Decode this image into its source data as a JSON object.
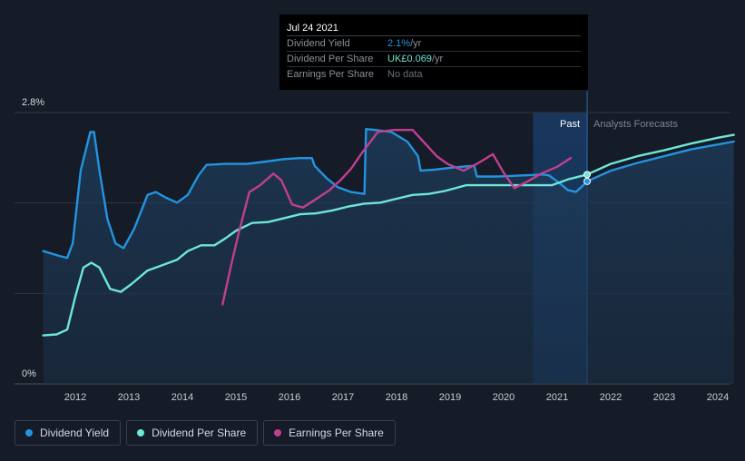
{
  "tooltip": {
    "date": "Jul 24 2021",
    "rows": [
      {
        "label": "Dividend Yield",
        "value": "2.1%",
        "unit": " /yr",
        "color": "#2394df"
      },
      {
        "label": "Dividend Per Share",
        "value": "UK£0.069",
        "unit": " /yr",
        "color": "#6ee6d8"
      },
      {
        "label": "Earnings Per Share",
        "value": "No data",
        "unit": "",
        "color": "#6b717d"
      }
    ]
  },
  "legend": [
    {
      "label": "Dividend Yield",
      "color": "#2394df"
    },
    {
      "label": "Dividend Per Share",
      "color": "#6ee6d8"
    },
    {
      "label": "Earnings Per Share",
      "color": "#c13f8f"
    }
  ],
  "chart_data": {
    "type": "line",
    "ylim": [
      0,
      2.8
    ],
    "y_tick_labels": [
      "2.8%",
      "0%"
    ],
    "x_range": [
      2011.4,
      2024.3
    ],
    "x_ticks": [
      2012,
      2013,
      2014,
      2015,
      2016,
      2017,
      2018,
      2019,
      2020,
      2021,
      2022,
      2023,
      2024
    ],
    "past_label": "Past",
    "forecast_label": "Analysts Forecasts",
    "forecast_start": 2021.56,
    "past_band_start": 2020.55,
    "series": [
      {
        "name": "Dividend Yield",
        "color": "#2394df",
        "fill": true,
        "points": [
          [
            2011.4,
            1.37
          ],
          [
            2011.7,
            1.32
          ],
          [
            2011.85,
            1.3
          ],
          [
            2011.95,
            1.45
          ],
          [
            2012.1,
            2.2
          ],
          [
            2012.28,
            2.6
          ],
          [
            2012.35,
            2.6
          ],
          [
            2012.45,
            2.2
          ],
          [
            2012.6,
            1.7
          ],
          [
            2012.75,
            1.45
          ],
          [
            2012.9,
            1.4
          ],
          [
            2013.1,
            1.6
          ],
          [
            2013.35,
            1.95
          ],
          [
            2013.5,
            1.98
          ],
          [
            2013.7,
            1.92
          ],
          [
            2013.9,
            1.87
          ],
          [
            2014.1,
            1.95
          ],
          [
            2014.3,
            2.15
          ],
          [
            2014.45,
            2.26
          ],
          [
            2014.8,
            2.27
          ],
          [
            2015.2,
            2.27
          ],
          [
            2015.5,
            2.29
          ],
          [
            2015.9,
            2.32
          ],
          [
            2016.2,
            2.33
          ],
          [
            2016.42,
            2.33
          ],
          [
            2016.47,
            2.25
          ],
          [
            2016.7,
            2.12
          ],
          [
            2016.9,
            2.03
          ],
          [
            2017.15,
            1.98
          ],
          [
            2017.4,
            1.96
          ],
          [
            2017.43,
            2.63
          ],
          [
            2017.6,
            2.62
          ],
          [
            2017.9,
            2.6
          ],
          [
            2018.2,
            2.5
          ],
          [
            2018.4,
            2.35
          ],
          [
            2018.45,
            2.2
          ],
          [
            2018.7,
            2.21
          ],
          [
            2019.0,
            2.23
          ],
          [
            2019.2,
            2.24
          ],
          [
            2019.45,
            2.25
          ],
          [
            2019.5,
            2.14
          ],
          [
            2019.9,
            2.14
          ],
          [
            2020.3,
            2.15
          ],
          [
            2020.75,
            2.16
          ],
          [
            2020.85,
            2.15
          ],
          [
            2021.0,
            2.09
          ],
          [
            2021.2,
            2.0
          ],
          [
            2021.35,
            1.98
          ],
          [
            2021.45,
            2.03
          ],
          [
            2021.56,
            2.09
          ],
          [
            2022.0,
            2.2
          ],
          [
            2022.5,
            2.28
          ],
          [
            2023.0,
            2.35
          ],
          [
            2023.5,
            2.42
          ],
          [
            2024.0,
            2.47
          ],
          [
            2024.3,
            2.5
          ]
        ]
      },
      {
        "name": "Dividend Per Share",
        "color": "#6ee6d8",
        "fill": false,
        "points": [
          [
            2011.4,
            0.5
          ],
          [
            2011.65,
            0.51
          ],
          [
            2011.85,
            0.56
          ],
          [
            2012.0,
            0.9
          ],
          [
            2012.15,
            1.2
          ],
          [
            2012.3,
            1.25
          ],
          [
            2012.45,
            1.2
          ],
          [
            2012.65,
            0.98
          ],
          [
            2012.85,
            0.95
          ],
          [
            2013.05,
            1.03
          ],
          [
            2013.35,
            1.17
          ],
          [
            2013.6,
            1.22
          ],
          [
            2013.9,
            1.28
          ],
          [
            2014.1,
            1.37
          ],
          [
            2014.35,
            1.43
          ],
          [
            2014.6,
            1.43
          ],
          [
            2014.8,
            1.5
          ],
          [
            2015.0,
            1.58
          ],
          [
            2015.3,
            1.66
          ],
          [
            2015.6,
            1.67
          ],
          [
            2015.9,
            1.71
          ],
          [
            2016.2,
            1.75
          ],
          [
            2016.5,
            1.76
          ],
          [
            2016.8,
            1.79
          ],
          [
            2017.1,
            1.83
          ],
          [
            2017.4,
            1.86
          ],
          [
            2017.7,
            1.87
          ],
          [
            2018.0,
            1.91
          ],
          [
            2018.3,
            1.95
          ],
          [
            2018.6,
            1.96
          ],
          [
            2018.9,
            1.99
          ],
          [
            2019.3,
            2.05
          ],
          [
            2019.6,
            2.05
          ],
          [
            2020.0,
            2.05
          ],
          [
            2020.4,
            2.05
          ],
          [
            2020.9,
            2.05
          ],
          [
            2021.2,
            2.11
          ],
          [
            2021.56,
            2.16
          ],
          [
            2022.0,
            2.27
          ],
          [
            2022.5,
            2.35
          ],
          [
            2023.0,
            2.41
          ],
          [
            2023.5,
            2.48
          ],
          [
            2024.0,
            2.54
          ],
          [
            2024.3,
            2.57
          ]
        ]
      },
      {
        "name": "Earnings Per Share",
        "color": "#c13f8f",
        "fill": false,
        "points": [
          [
            2014.75,
            0.82
          ],
          [
            2014.9,
            1.2
          ],
          [
            2015.05,
            1.55
          ],
          [
            2015.25,
            1.98
          ],
          [
            2015.45,
            2.05
          ],
          [
            2015.7,
            2.17
          ],
          [
            2015.85,
            2.1
          ],
          [
            2016.05,
            1.85
          ],
          [
            2016.25,
            1.82
          ],
          [
            2016.45,
            1.89
          ],
          [
            2016.75,
            2.0
          ],
          [
            2016.95,
            2.1
          ],
          [
            2017.15,
            2.22
          ],
          [
            2017.35,
            2.38
          ],
          [
            2017.65,
            2.6
          ],
          [
            2017.95,
            2.62
          ],
          [
            2018.3,
            2.62
          ],
          [
            2018.5,
            2.5
          ],
          [
            2018.75,
            2.35
          ],
          [
            2018.95,
            2.27
          ],
          [
            2019.25,
            2.2
          ],
          [
            2019.5,
            2.27
          ],
          [
            2019.8,
            2.37
          ],
          [
            2020.0,
            2.18
          ],
          [
            2020.2,
            2.02
          ],
          [
            2020.45,
            2.09
          ],
          [
            2020.7,
            2.17
          ],
          [
            2021.0,
            2.24
          ],
          [
            2021.25,
            2.33
          ]
        ]
      }
    ],
    "markers": [
      {
        "series": "Dividend Yield",
        "x": 2021.56,
        "y": 2.09
      },
      {
        "series": "Dividend Per Share",
        "x": 2021.56,
        "y": 2.16
      }
    ]
  }
}
